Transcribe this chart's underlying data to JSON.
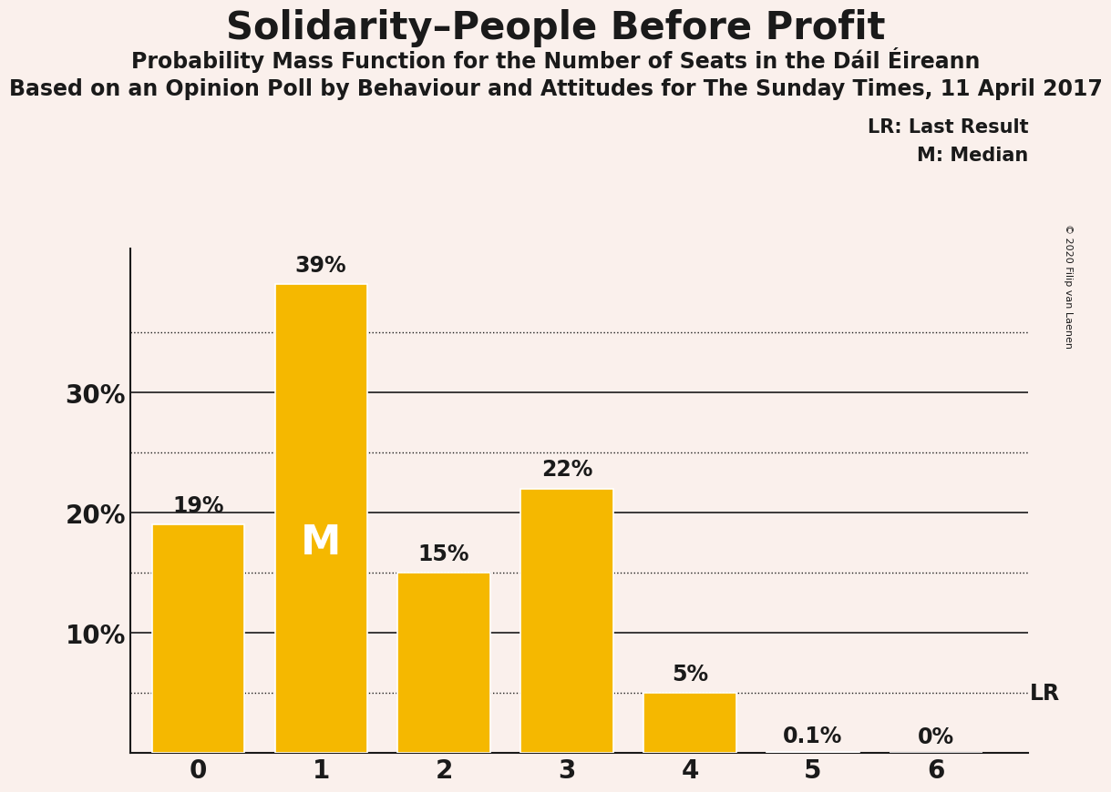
{
  "title": "Solidarity–People Before Profit",
  "subtitle": "Probability Mass Function for the Number of Seats in the Dáil Éireann",
  "source_line": "Based on an Opinion Poll by Behaviour and Attitudes for The Sunday Times, 11 April 2017",
  "copyright": "© 2020 Filip van Laenen",
  "categories": [
    0,
    1,
    2,
    3,
    4,
    5,
    6
  ],
  "values": [
    0.19,
    0.39,
    0.15,
    0.22,
    0.05,
    0.001,
    0.0
  ],
  "value_labels": [
    "19%",
    "39%",
    "15%",
    "22%",
    "5%",
    "0.1%",
    "0%"
  ],
  "bar_color": "#F5B800",
  "bg_color": "#FAF0EC",
  "median_bar": 1,
  "median_label": "M",
  "lr_value": 0.05,
  "lr_label": "LR",
  "solid_lines": [
    0.0,
    0.1,
    0.2,
    0.3
  ],
  "dotted_lines": [
    0.05,
    0.15,
    0.25,
    0.35
  ],
  "yticks": [
    0.0,
    0.1,
    0.2,
    0.3
  ],
  "ytick_labels": [
    "",
    "10%",
    "20%",
    "30%"
  ],
  "ylim": [
    0,
    0.42
  ],
  "legend_lr": "LR: Last Result",
  "legend_m": "M: Median",
  "title_fontsize": 30,
  "subtitle_fontsize": 17,
  "source_fontsize": 17,
  "label_fontsize": 17,
  "tick_fontsize": 20,
  "bar_edge_color": "white",
  "text_color": "#1a1a1a"
}
